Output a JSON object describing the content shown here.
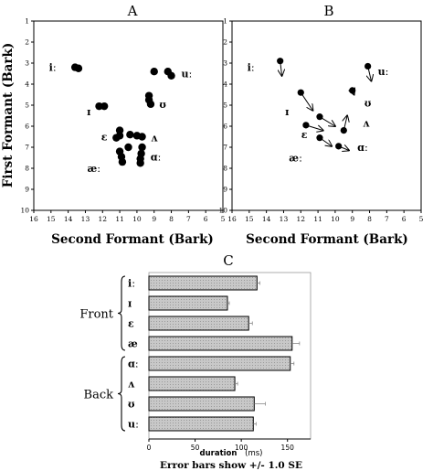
{
  "chart_data": [
    {
      "id": "A",
      "type": "scatter",
      "panel_label": "A",
      "xlabel": "Second Formant (Bark)",
      "ylabel": "First Formant (Bark)",
      "xlim": [
        16,
        5
      ],
      "ylim": [
        1,
        10
      ],
      "x_ticks": [
        16,
        15,
        14,
        13,
        12,
        11,
        10,
        9,
        8,
        7,
        6,
        5
      ],
      "y_ticks": [
        1,
        2,
        3,
        4,
        5,
        6,
        7,
        8,
        9,
        10
      ],
      "points": [
        {
          "x": 13.6,
          "y": 3.2
        },
        {
          "x": 13.4,
          "y": 3.25
        },
        {
          "x": 12.2,
          "y": 5.05
        },
        {
          "x": 11.9,
          "y": 5.05
        },
        {
          "x": 9.0,
          "y": 3.4
        },
        {
          "x": 8.2,
          "y": 3.4
        },
        {
          "x": 8.0,
          "y": 3.6
        },
        {
          "x": 9.3,
          "y": 4.55
        },
        {
          "x": 9.3,
          "y": 4.75
        },
        {
          "x": 9.2,
          "y": 4.95
        },
        {
          "x": 11.0,
          "y": 6.2
        },
        {
          "x": 11.0,
          "y": 6.45
        },
        {
          "x": 11.2,
          "y": 6.55
        },
        {
          "x": 10.4,
          "y": 6.4
        },
        {
          "x": 10.0,
          "y": 6.45
        },
        {
          "x": 9.7,
          "y": 6.5
        },
        {
          "x": 10.5,
          "y": 7.0
        },
        {
          "x": 9.7,
          "y": 7.0
        },
        {
          "x": 9.75,
          "y": 7.3
        },
        {
          "x": 11.0,
          "y": 7.2
        },
        {
          "x": 10.9,
          "y": 7.45
        },
        {
          "x": 10.85,
          "y": 7.7
        },
        {
          "x": 9.8,
          "y": 7.55
        },
        {
          "x": 9.8,
          "y": 7.75
        }
      ],
      "vowel_labels": [
        {
          "text": "iː",
          "x": 14.9,
          "y": 3.2
        },
        {
          "text": "ɪ",
          "x": 12.8,
          "y": 5.3
        },
        {
          "text": "ε",
          "x": 11.9,
          "y": 6.5
        },
        {
          "text": "æː",
          "x": 12.5,
          "y": 8.0
        },
        {
          "text": "uː",
          "x": 7.1,
          "y": 3.5
        },
        {
          "text": "ʊ",
          "x": 8.5,
          "y": 4.95
        },
        {
          "text": "ʌ",
          "x": 9.0,
          "y": 6.55
        },
        {
          "text": "ɑː",
          "x": 8.9,
          "y": 7.45
        }
      ]
    },
    {
      "id": "B",
      "type": "scatter",
      "panel_label": "B",
      "xlabel": "Second Formant (Bark)",
      "xlim": [
        16,
        5
      ],
      "ylim": [
        1,
        10
      ],
      "x_ticks": [
        16,
        15,
        14,
        13,
        12,
        11,
        10,
        9,
        8,
        7,
        6,
        5
      ],
      "y_ticks": [
        1,
        2,
        3,
        4,
        5,
        6,
        7,
        8,
        9,
        10
      ],
      "trajectories": [
        {
          "from": [
            13.2,
            2.9
          ],
          "to": [
            13.1,
            3.6
          ]
        },
        {
          "from": [
            12.0,
            4.4
          ],
          "to": [
            11.3,
            5.25
          ]
        },
        {
          "from": [
            10.9,
            5.55
          ],
          "to": [
            10.0,
            6.0
          ]
        },
        {
          "from": [
            11.7,
            5.95
          ],
          "to": [
            10.7,
            6.2
          ]
        },
        {
          "from": [
            10.9,
            6.55
          ],
          "to": [
            10.2,
            6.95
          ]
        },
        {
          "from": [
            9.8,
            6.95
          ],
          "to": [
            9.2,
            7.15
          ]
        },
        {
          "from": [
            9.5,
            6.2
          ],
          "to": [
            9.3,
            5.5
          ]
        },
        {
          "from": [
            9.0,
            4.3
          ],
          "to": [
            8.9,
            4.5
          ]
        },
        {
          "from": [
            8.1,
            3.15
          ],
          "to": [
            7.9,
            3.85
          ]
        }
      ],
      "vowel_labels": [
        {
          "text": "iː",
          "x": 14.9,
          "y": 3.2
        },
        {
          "text": "ɪ",
          "x": 12.8,
          "y": 5.3
        },
        {
          "text": "ε",
          "x": 11.8,
          "y": 6.4
        },
        {
          "text": "æː",
          "x": 12.3,
          "y": 7.5
        },
        {
          "text": "uː",
          "x": 7.2,
          "y": 3.4
        },
        {
          "text": "ʊ",
          "x": 8.1,
          "y": 4.9
        },
        {
          "text": "ʌ",
          "x": 8.2,
          "y": 5.85
        },
        {
          "text": "ɑː",
          "x": 8.4,
          "y": 7.0
        }
      ]
    },
    {
      "id": "C",
      "type": "bar",
      "orientation": "horizontal",
      "panel_label": "C",
      "xlabel": "duration",
      "xlabel_unit": "(ms)",
      "xlim": [
        0,
        175
      ],
      "x_ticks": [
        0,
        50,
        100,
        150
      ],
      "categories": [
        "iː",
        "ɪ",
        "ε",
        "æ",
        "ɑː",
        "ʌ",
        "ʊ",
        "uː"
      ],
      "values": [
        117,
        85,
        108,
        155,
        153,
        93,
        114,
        113
      ],
      "errors": [
        3,
        2,
        4,
        8,
        4,
        3,
        12,
        3
      ],
      "groups": [
        {
          "name": "Front",
          "start": 0,
          "end": 3
        },
        {
          "name": "Back",
          "start": 4,
          "end": 7
        }
      ],
      "footnote": "Error bars show +/- 1.0 SE"
    }
  ]
}
